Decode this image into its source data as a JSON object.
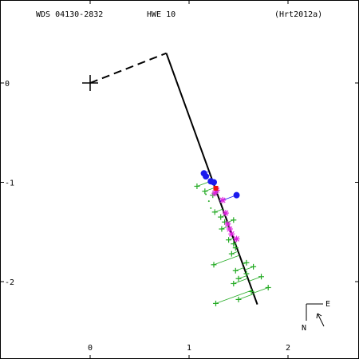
{
  "header": {
    "wds_id": "WDS 04130-2832",
    "discoverer": "HWE  10",
    "reference": "(Hrt2012a)"
  },
  "compass": {
    "east_label": "E",
    "north_label": "N"
  },
  "chart_data": {
    "type": "scatter",
    "title": "",
    "xlabel": "",
    "ylabel": "",
    "xlim": [
      -0.9,
      2.7
    ],
    "ylim": [
      -2.75,
      0.85
    ],
    "xticks": [
      0,
      1,
      2
    ],
    "yticks": [
      0,
      -1,
      -2
    ],
    "primary": [
      0,
      0
    ],
    "reference_line": [
      [
        0,
        0
      ],
      [
        0.77,
        0.3
      ]
    ],
    "orbit_line": [
      [
        0.77,
        0.3
      ],
      [
        1.69,
        -2.23
      ]
    ],
    "series": [
      {
        "symbol": "plus",
        "color": "#22aa22",
        "points": [
          [
            1.08,
            -1.04
          ],
          [
            1.16,
            -1.09
          ],
          [
            1.24,
            -1.13
          ],
          [
            1.26,
            -1.3
          ],
          [
            1.32,
            -1.35
          ],
          [
            1.36,
            -1.4
          ],
          [
            1.33,
            -1.47
          ],
          [
            1.45,
            -1.38
          ],
          [
            1.4,
            -1.58
          ],
          [
            1.45,
            -1.62
          ],
          [
            1.47,
            -1.66
          ],
          [
            1.43,
            -1.72
          ],
          [
            1.58,
            -1.81
          ],
          [
            1.65,
            -1.85
          ],
          [
            1.47,
            -1.89
          ],
          [
            1.58,
            -1.92
          ],
          [
            1.5,
            -1.97
          ],
          [
            1.73,
            -1.95
          ],
          [
            1.45,
            -2.02
          ],
          [
            1.8,
            -2.06
          ],
          [
            1.63,
            -2.1
          ],
          [
            1.5,
            -2.18
          ],
          [
            1.27,
            -2.22
          ],
          [
            1.25,
            -1.83
          ]
        ]
      },
      {
        "symbol": "dot",
        "color": "#22aa22",
        "points": [
          [
            1.17,
            -1.12
          ],
          [
            1.2,
            -1.19
          ],
          [
            1.22,
            -1.26
          ]
        ]
      },
      {
        "symbol": "asterisk",
        "color": "#dd22dd",
        "points": [
          [
            1.28,
            -1.08
          ],
          [
            1.26,
            -1.11
          ],
          [
            1.34,
            -1.18
          ],
          [
            1.37,
            -1.31
          ],
          [
            1.39,
            -1.42
          ],
          [
            1.41,
            -1.47
          ],
          [
            1.43,
            -1.52
          ],
          [
            1.48,
            -1.57
          ]
        ]
      },
      {
        "symbol": "circle",
        "color": "#1a1aee",
        "points": [
          [
            1.17,
            -0.94
          ],
          [
            1.15,
            -0.91
          ],
          [
            1.22,
            -0.99
          ],
          [
            1.25,
            -1.0
          ],
          [
            1.48,
            -1.13
          ]
        ]
      },
      {
        "symbol": "square",
        "color": "#ee1111",
        "points": [
          [
            1.27,
            -1.06
          ]
        ]
      }
    ]
  }
}
